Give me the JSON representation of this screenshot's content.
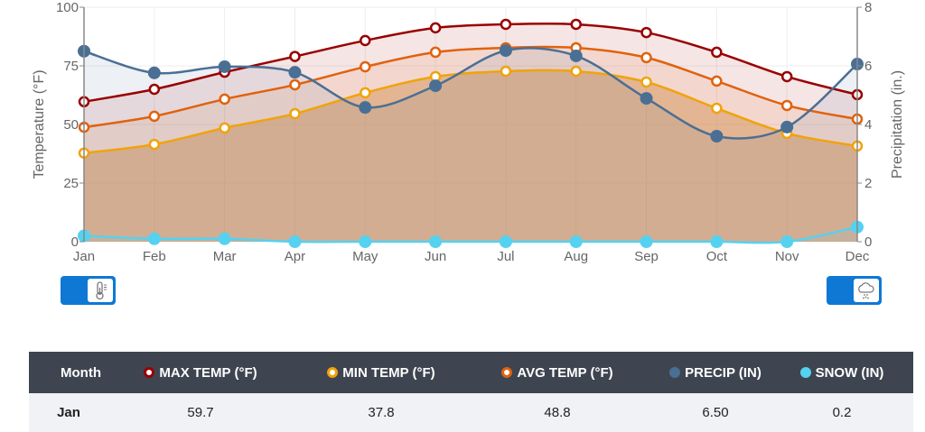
{
  "chart_data": {
    "type": "line",
    "categories": [
      "Jan",
      "Feb",
      "Mar",
      "Apr",
      "May",
      "Jun",
      "Jul",
      "Aug",
      "Sep",
      "Oct",
      "Nov",
      "Dec"
    ],
    "y_left": {
      "label": "Temperature (°F)",
      "range": [
        0,
        100
      ],
      "ticks": [
        "0",
        "25",
        "50",
        "75",
        "100"
      ],
      "tick_values": [
        0,
        25,
        50,
        75,
        100
      ]
    },
    "y_right": {
      "label": "Precipitation (in.)",
      "range": [
        0,
        8
      ],
      "ticks": [
        "0",
        "2",
        "4",
        "6",
        "8"
      ],
      "tick_values": [
        0,
        2,
        4,
        6,
        8
      ]
    },
    "grid": true,
    "series": [
      {
        "name": "MAX TEMP (°F)",
        "axis": "left",
        "color": "#990000",
        "fill": "rgba(153,0,0,0.10)",
        "marker": "ring",
        "values": [
          59.7,
          65.0,
          72.3,
          79.0,
          85.8,
          91.2,
          92.7,
          92.7,
          89.2,
          80.8,
          70.4,
          62.7
        ]
      },
      {
        "name": "AVG TEMP (°F)",
        "axis": "left",
        "color": "#e0620d",
        "fill": "rgba(224,98,13,0.10)",
        "marker": "ring",
        "values": [
          48.8,
          53.5,
          60.8,
          66.9,
          74.6,
          80.8,
          82.7,
          82.7,
          78.5,
          68.5,
          58.1,
          52.3
        ]
      },
      {
        "name": "MIN TEMP (°F)",
        "axis": "left",
        "color": "#f0a30a",
        "fill": "rgba(240,163,10,0.12)",
        "marker": "ring",
        "values": [
          37.8,
          41.5,
          48.5,
          54.6,
          63.5,
          70.4,
          72.7,
          72.7,
          68.1,
          56.9,
          46.2,
          40.8
        ]
      },
      {
        "name": "PRECIP (IN)",
        "axis": "right",
        "color": "#4a6f94",
        "fill": "rgba(74,111,148,0.10)",
        "marker": "solid",
        "values": [
          6.5,
          5.76,
          5.97,
          5.78,
          4.58,
          5.32,
          6.52,
          6.34,
          4.89,
          3.6,
          3.91,
          6.06
        ]
      },
      {
        "name": "SNOW (IN)",
        "axis": "right",
        "color": "#55d2f0",
        "fill": "rgba(85,210,240,0.10)",
        "marker": "solid",
        "values": [
          0.2,
          0.1,
          0.1,
          0.0,
          0.0,
          0.0,
          0.0,
          0.0,
          0.0,
          0.0,
          0.0,
          0.5
        ]
      }
    ],
    "legend": "table-below"
  },
  "toggles": {
    "left_icon": "thermometer-icon",
    "right_icon": "cloud-snow-rain-icon",
    "color": "#0f78d4"
  },
  "table": {
    "headers": {
      "month": "Month",
      "max": "MAX TEMP (°F)",
      "min": "MIN TEMP (°F)",
      "avg": "AVG TEMP (°F)",
      "precip": "PRECIP (IN)",
      "snow": "SNOW (IN)"
    },
    "row": {
      "month": "Jan",
      "max": "59.7",
      "min": "37.8",
      "avg": "48.8",
      "precip": "6.50",
      "snow": "0.2"
    },
    "header_bg": "#3e4550",
    "row_bg": "#f1f2f5"
  }
}
